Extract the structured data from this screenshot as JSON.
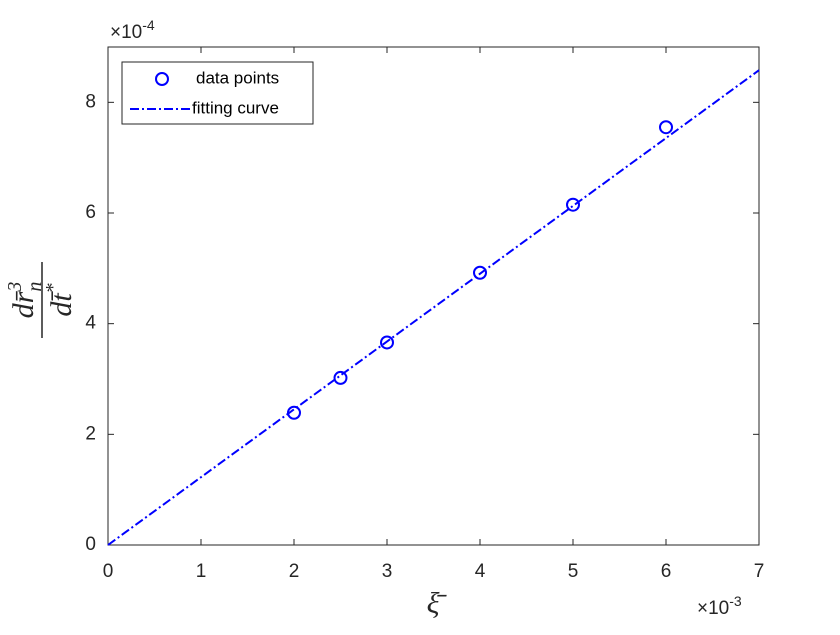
{
  "chart_data": {
    "type": "scatter",
    "xlabel": "ξ̄",
    "ylabel": {
      "numerator": "dr̄",
      "numerator_sup": "3",
      "numerator_sub": "n",
      "denominator": "dt̄",
      "denominator_sup": "*"
    },
    "x_multiplier": {
      "base": "×10",
      "exponent": "-3"
    },
    "y_multiplier": {
      "base": "×10",
      "exponent": "-4"
    },
    "xlim": [
      0,
      7
    ],
    "xticks": [
      0,
      1,
      2,
      3,
      4,
      5,
      6,
      7
    ],
    "ylim": [
      0,
      9
    ],
    "yticks": [
      0,
      2,
      4,
      6,
      8
    ],
    "legend": "northwest",
    "series": [
      {
        "name": "data points",
        "color": "#0000ff",
        "mode": "markers",
        "x": [
          2,
          2.5,
          3,
          4,
          5,
          6
        ],
        "values": [
          2.39,
          3.02,
          3.66,
          4.92,
          6.15,
          7.55
        ]
      },
      {
        "name": "fitting curve",
        "color": "#0000ff",
        "mode": "dashdot",
        "x": [
          0,
          7
        ],
        "values": [
          0,
          8.58
        ]
      }
    ]
  }
}
